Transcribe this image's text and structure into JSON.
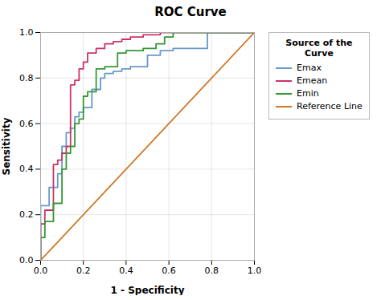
{
  "chart_data": {
    "type": "line",
    "title": "ROC Curve",
    "xlabel": "1 - Specificity",
    "ylabel": "Sensitivity",
    "legend_title": "Source of the\nCurve",
    "legend": "right",
    "grid": true,
    "xlim": [
      0.0,
      1.0
    ],
    "ylim": [
      0.0,
      1.0
    ],
    "xticks": [
      {
        "value": 0.0,
        "label": "0.0"
      },
      0.2,
      0.4,
      0.6,
      0.8,
      {
        "value": 1.0,
        "label": "1.0"
      }
    ],
    "yticks": [
      {
        "value": 0.0,
        "label": "0.0"
      },
      0.2,
      0.4,
      0.6,
      0.8,
      {
        "value": 1.0,
        "label": "1.0"
      }
    ],
    "series": [
      {
        "name": "Emax",
        "color": "#6699CC",
        "x": [
          0.0,
          0.0,
          0.04,
          0.04,
          0.08,
          0.08,
          0.1,
          0.1,
          0.12,
          0.12,
          0.14,
          0.14,
          0.16,
          0.16,
          0.18,
          0.18,
          0.2,
          0.2,
          0.24,
          0.24,
          0.28,
          0.28,
          0.3,
          0.3,
          0.34,
          0.34,
          0.38,
          0.38,
          0.42,
          0.42,
          0.5,
          0.5,
          0.56,
          0.56,
          0.62,
          0.62,
          0.7,
          0.7,
          0.78,
          0.78,
          1.0
        ],
        "values": [
          0.0,
          0.24,
          0.24,
          0.32,
          0.32,
          0.38,
          0.38,
          0.5,
          0.5,
          0.56,
          0.56,
          0.58,
          0.58,
          0.63,
          0.63,
          0.65,
          0.65,
          0.67,
          0.67,
          0.75,
          0.75,
          0.8,
          0.8,
          0.82,
          0.82,
          0.83,
          0.83,
          0.84,
          0.84,
          0.85,
          0.85,
          0.9,
          0.9,
          0.92,
          0.92,
          0.93,
          0.93,
          0.93,
          0.93,
          1.0,
          1.0
        ]
      },
      {
        "name": "Emean",
        "color": "#CC3366",
        "x": [
          0.0,
          0.0,
          0.02,
          0.02,
          0.06,
          0.06,
          0.08,
          0.08,
          0.1,
          0.1,
          0.12,
          0.12,
          0.14,
          0.14,
          0.16,
          0.16,
          0.18,
          0.18,
          0.2,
          0.2,
          0.22,
          0.22,
          0.26,
          0.26,
          0.3,
          0.3,
          0.34,
          0.34,
          0.38,
          0.38,
          0.42,
          0.42,
          0.48,
          0.48,
          0.56,
          0.56,
          0.6,
          0.6,
          1.0
        ],
        "values": [
          0.0,
          0.16,
          0.16,
          0.22,
          0.22,
          0.42,
          0.42,
          0.44,
          0.44,
          0.47,
          0.47,
          0.5,
          0.5,
          0.77,
          0.77,
          0.79,
          0.79,
          0.84,
          0.84,
          0.87,
          0.87,
          0.91,
          0.91,
          0.93,
          0.93,
          0.95,
          0.95,
          0.96,
          0.96,
          0.97,
          0.97,
          0.98,
          0.98,
          0.99,
          0.99,
          1.0,
          1.0,
          1.0,
          1.0
        ]
      },
      {
        "name": "Emin",
        "color": "#339933",
        "x": [
          0.0,
          0.0,
          0.02,
          0.02,
          0.06,
          0.06,
          0.1,
          0.1,
          0.12,
          0.12,
          0.14,
          0.14,
          0.16,
          0.16,
          0.18,
          0.18,
          0.2,
          0.2,
          0.22,
          0.22,
          0.26,
          0.26,
          0.3,
          0.3,
          0.36,
          0.36,
          0.4,
          0.4,
          0.48,
          0.48,
          0.54,
          0.54,
          0.58,
          0.58,
          0.62,
          0.62,
          0.66,
          0.66,
          1.0
        ],
        "values": [
          0.0,
          0.1,
          0.1,
          0.17,
          0.17,
          0.25,
          0.25,
          0.4,
          0.4,
          0.47,
          0.47,
          0.5,
          0.5,
          0.6,
          0.6,
          0.62,
          0.62,
          0.72,
          0.72,
          0.74,
          0.74,
          0.84,
          0.84,
          0.85,
          0.85,
          0.91,
          0.91,
          0.92,
          0.92,
          0.93,
          0.93,
          0.95,
          0.95,
          0.98,
          0.98,
          1.0,
          1.0,
          1.0,
          1.0
        ]
      },
      {
        "name": "Reference Line",
        "color": "#CC7722",
        "x": [
          0,
          1
        ],
        "values": [
          0,
          1
        ]
      }
    ]
  }
}
